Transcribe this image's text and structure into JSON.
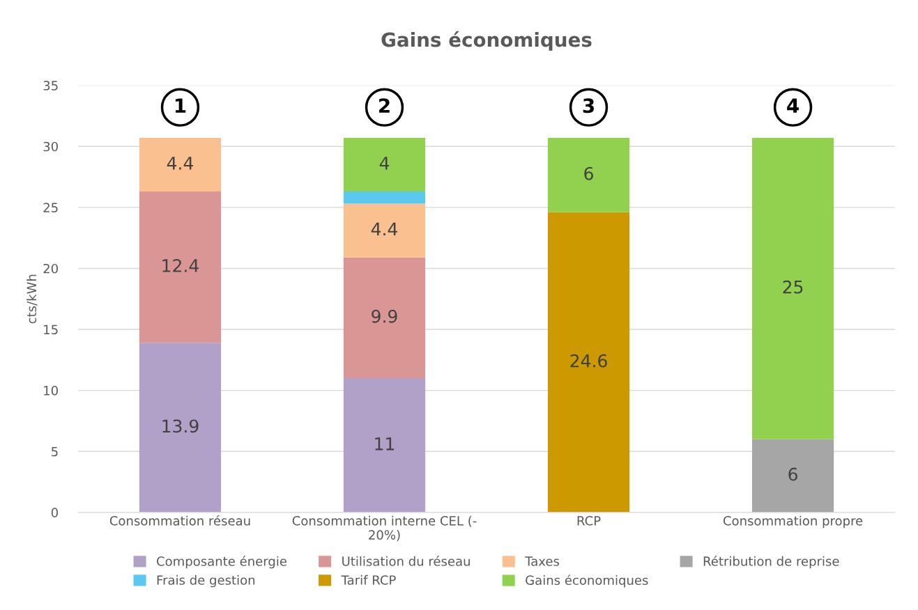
{
  "chart_data": {
    "type": "bar",
    "title": "Gains économiques",
    "ylabel": "cts/kWh",
    "categories": [
      "Consommation réseau",
      "Consommation interne CEL (-\n20%)",
      "RCP",
      "Consommation propre"
    ],
    "stacked": true,
    "ylim": [
      0,
      35
    ],
    "yticks": [
      0,
      5,
      10,
      15,
      20,
      25,
      30,
      35
    ],
    "grid": "y",
    "legend": "bottom",
    "series": [
      {
        "name": "Composante énergie",
        "color": "#b1a0c7",
        "values": [
          13.9,
          11,
          null,
          null
        ],
        "value_labels": [
          "13.9",
          "11",
          null,
          null
        ]
      },
      {
        "name": "Utilisation du réseau",
        "color": "#da9694",
        "values": [
          12.4,
          9.9,
          null,
          null
        ],
        "value_labels": [
          "12.4",
          "9.9",
          null,
          null
        ]
      },
      {
        "name": "Taxes",
        "color": "#fac090",
        "values": [
          4.4,
          4.4,
          null,
          null
        ],
        "value_labels": [
          "4.4",
          "4.4",
          null,
          null
        ]
      },
      {
        "name": "Rétribution de reprise",
        "color": "#a6a6a6",
        "values": [
          null,
          null,
          null,
          6
        ],
        "value_labels": [
          null,
          null,
          null,
          "6"
        ]
      },
      {
        "name": "Frais de gestion",
        "color": "#5bc8f0",
        "values": [
          null,
          1.0,
          null,
          null
        ]
      },
      {
        "name": "Tarif RCP",
        "color": "#cc9900",
        "values": [
          null,
          null,
          24.6,
          null
        ],
        "value_labels": [
          null,
          null,
          "24.6",
          null
        ]
      },
      {
        "name": "Gains économiques",
        "color": "#92d050",
        "values": [
          null,
          4.4,
          6.1,
          24.7
        ],
        "value_labels": [
          null,
          "4",
          "6",
          "25"
        ]
      }
    ],
    "annotations": [
      "1",
      "2",
      "3",
      "4"
    ]
  }
}
